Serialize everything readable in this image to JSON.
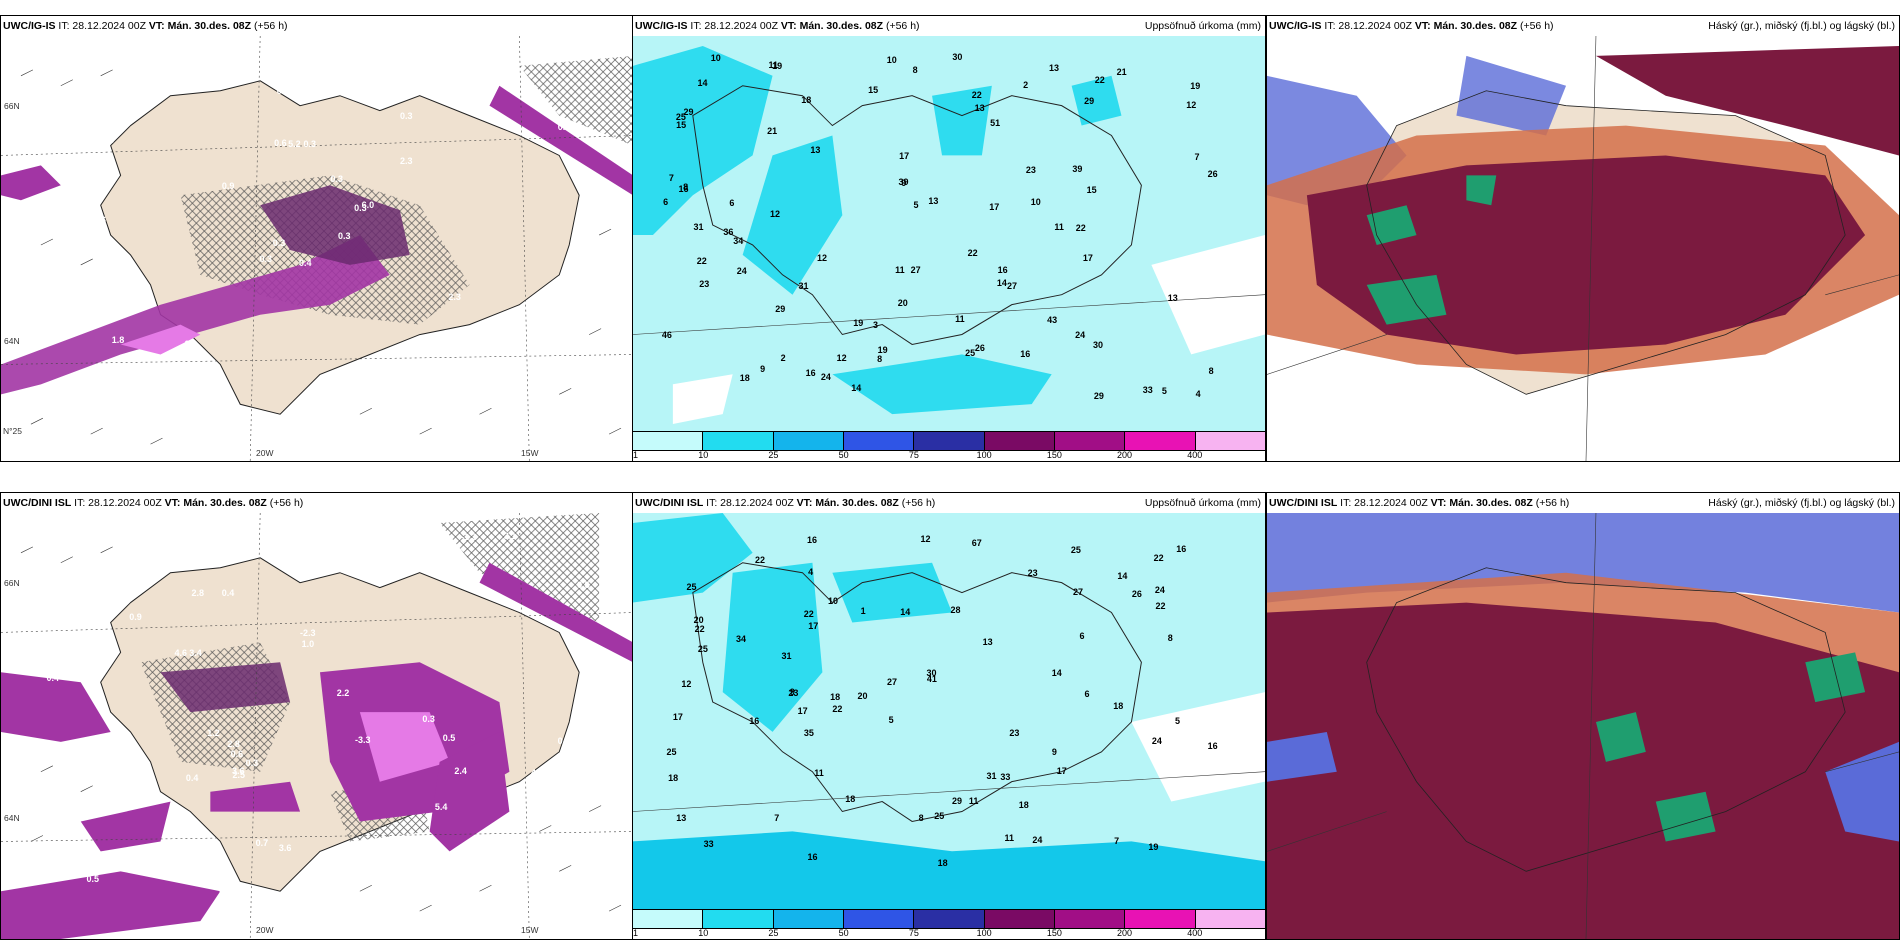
{
  "colors": {
    "land": "#efe1d0",
    "sea_white": "#ffffff",
    "precip_light": "#b7f5f7",
    "precip_mid": "#2fdcef",
    "precip_blue": "#13c8ea",
    "temp_purple_dark": "#6a2a6e",
    "temp_purple": "#a235a4",
    "temp_magenta": "#e57ae6",
    "cloud_high": "#7b1a3f",
    "cloud_mid": "#d4704a",
    "cloud_low": "#5a6bd8",
    "cloud_green": "#1f9e6f"
  },
  "panels": [
    {
      "model_label": "UWC/IG-IS",
      "init_label": "IT: 28.12.2024 00Z",
      "valid_label": "VT: Mán. 30.des. 08Z",
      "lead_label": "(+56 h)",
      "right_title": "",
      "lat_label": "66N",
      "lat_label_2": "64N",
      "lon_label_1": "20W",
      "lon_label_2": "15W",
      "corner_label": "N°25",
      "values": [
        "0.4",
        "0.5",
        "0.3",
        "0.3",
        "0.3",
        "0.3",
        "0.3",
        "0.3",
        "0.3",
        "0.3",
        "0.3",
        "1.0",
        "0.6",
        "0.4",
        "0.3",
        "2.3",
        "1.8",
        "0.6",
        "0.3",
        "1.8",
        "0.9",
        "0.3",
        "4.7",
        "5.2",
        "6.0",
        "2.3",
        "1.0",
        "0.2",
        "0.2"
      ]
    },
    {
      "model_label": "UWC/IG-IS",
      "init_label": "IT: 28.12.2024 00Z",
      "valid_label": "VT: Mán. 30.des. 08Z",
      "lead_label": "(+56 h)",
      "right_title": "Uppsöfnuð úrkoma (mm)",
      "values": [
        "6",
        "8",
        "39",
        "19",
        "25",
        "33",
        "36",
        "51",
        "17",
        "21",
        "13",
        "17",
        "10",
        "15",
        "21",
        "29",
        "26",
        "31",
        "22",
        "20",
        "43",
        "30",
        "12",
        "9",
        "2",
        "5",
        "16",
        "19",
        "24",
        "25",
        "22",
        "29",
        "17",
        "18",
        "16",
        "23",
        "15",
        "14",
        "12",
        "13",
        "11",
        "10",
        "8",
        "26",
        "27",
        "31",
        "29",
        "46",
        "19",
        "12",
        "23",
        "24",
        "27",
        "22",
        "16",
        "15",
        "14",
        "39",
        "22",
        "13",
        "11",
        "9",
        "7",
        "4",
        "5",
        "6",
        "3",
        "12",
        "8",
        "7",
        "2",
        "10",
        "11",
        "19",
        "22",
        "18",
        "13",
        "34",
        "30",
        "29",
        "24",
        "14",
        "11",
        "13",
        "8",
        "16"
      ]
    },
    {
      "model_label": "UWC/IG-IS",
      "init_label": "IT: 28.12.2024 00Z",
      "valid_label": "VT: Mán. 30.des. 08Z",
      "lead_label": "(+56 h)",
      "right_title": "Háský (gr.), miðský (fj.bl.) og lágský (bl.)"
    },
    {
      "model_label": "UWC/DINI ISL",
      "init_label": "IT: 28.12.2024 00Z",
      "valid_label": "VT: Mán. 30.des. 08Z",
      "lead_label": "(+56 h)",
      "right_title": "",
      "lat_label": "66N",
      "lat_label_2": "64N",
      "lon_label_1": "20W",
      "lon_label_2": "15W",
      "values": [
        "0.4",
        "0.3",
        "0.3",
        "0.3",
        "0.3",
        "0.3",
        "0.4",
        "0.3",
        "0.3",
        "0.4",
        "0.5",
        "0.7",
        "0.5",
        "0.9",
        "0.5",
        "0.4",
        "0.6",
        "0.6",
        "0.5",
        "0.6",
        "0.3",
        "2.3",
        "2.5",
        "3.6",
        "3.6",
        "3.1",
        "2.2",
        "4.9",
        "-1.3",
        "3.4",
        "2.8",
        "2.8",
        "4.8",
        "-2.1",
        "4.6",
        "5.4",
        "2.4",
        "1.0",
        "0.5",
        "1.2",
        "-2.3",
        "2.8",
        "2.9",
        "-3.3",
        "-5.5"
      ]
    },
    {
      "model_label": "UWC/DINI ISL",
      "init_label": "IT: 28.12.2024 00Z",
      "valid_label": "VT: Mán. 30.des. 08Z",
      "lead_label": "(+56 h)",
      "right_title": "Uppsöfnuð úrkoma (mm)",
      "values": [
        "67",
        "41",
        "18",
        "31",
        "20",
        "23",
        "25",
        "22",
        "17",
        "33",
        "5",
        "9",
        "11",
        "22",
        "28",
        "14",
        "6",
        "8",
        "13",
        "35",
        "25",
        "24",
        "33",
        "18",
        "25",
        "11",
        "13",
        "8",
        "17",
        "16",
        "27",
        "18",
        "20",
        "23",
        "16",
        "22",
        "17",
        "14",
        "18",
        "26",
        "12",
        "9",
        "22",
        "24",
        "25",
        "16",
        "10",
        "6",
        "7",
        "12",
        "16",
        "18",
        "14",
        "19",
        "11",
        "7",
        "5",
        "30",
        "29",
        "27",
        "31",
        "22",
        "23",
        "22",
        "17",
        "18",
        "24",
        "16",
        "34",
        "25",
        "4",
        "1"
      ]
    },
    {
      "model_label": "UWC/DINI ISL",
      "init_label": "IT: 28.12.2024 00Z",
      "valid_label": "VT: Mán. 30.des. 08Z",
      "lead_label": "(+56 h)",
      "right_title": "Háský (gr.), miðský (fj.bl.) og lágský (bl.)"
    }
  ],
  "colorbar": {
    "ticks": [
      "1",
      "10",
      "25",
      "50",
      "75",
      "100",
      "150",
      "200",
      "400"
    ],
    "swatch_colors": [
      "#c5fbfb",
      "#22dcf0",
      "#14b4ec",
      "#2f55e6",
      "#2a2fa4",
      "#7a0a64",
      "#a10e86",
      "#e812b4",
      "#f7b3f1"
    ]
  }
}
